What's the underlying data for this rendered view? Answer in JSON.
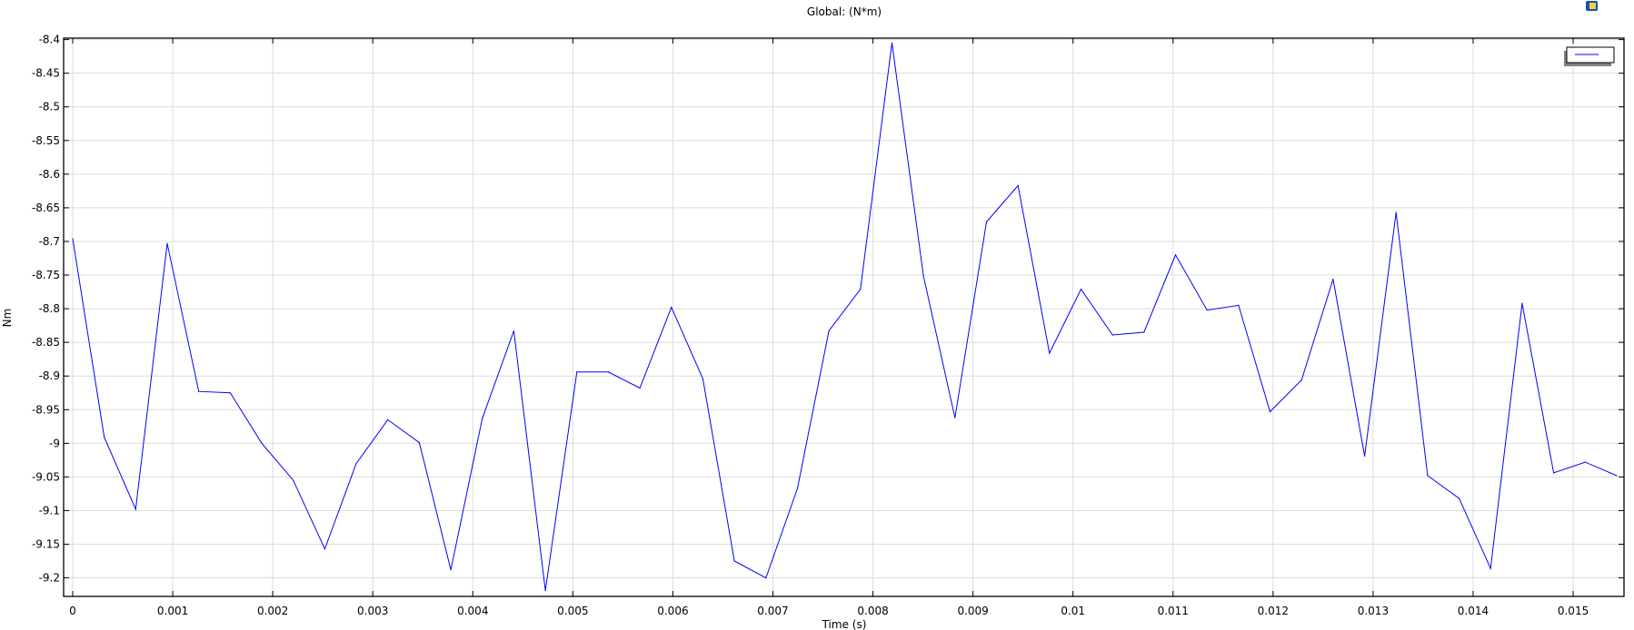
{
  "chart_data": {
    "type": "line",
    "title": "Global:  (N*m)",
    "xlabel": "Time (s)",
    "ylabel": "Nm",
    "xlim": [
      0,
      0.0158
    ],
    "ylim": [
      -9.23,
      -8.39
    ],
    "grid": true,
    "legend_placement": "top-right",
    "x_ticks": [
      "0",
      "0.001",
      "0.002",
      "0.003",
      "0.004",
      "0.005",
      "0.006",
      "0.007",
      "0.008",
      "0.009",
      "0.01",
      "0.011",
      "0.012",
      "0.013",
      "0.014",
      "0.015"
    ],
    "y_ticks": [
      "-8.4",
      "-8.45",
      "-8.5",
      "-8.55",
      "-8.6",
      "-8.65",
      "-8.7",
      "-8.75",
      "-8.8",
      "-8.85",
      "-8.9",
      "-8.95",
      "-9",
      "-9.05",
      "-9.1",
      "-9.15",
      "-9.2"
    ],
    "series": [
      {
        "color": "#0000ff",
        "x": [
          0,
          0.000315,
          0.00063,
          0.000945,
          0.00126,
          0.001575,
          0.00189,
          0.002205,
          0.00252,
          0.002835,
          0.00315,
          0.003465,
          0.00378,
          0.004095,
          0.00441,
          0.004725,
          0.00504,
          0.005355,
          0.00567,
          0.005985,
          0.0063,
          0.006615,
          0.00693,
          0.007245,
          0.00756,
          0.007875,
          0.00819,
          0.008505,
          0.00882,
          0.009135,
          0.00945,
          0.009765,
          0.01008,
          0.010395,
          0.01071,
          0.011025,
          0.01134,
          0.011655,
          0.01197,
          0.012285,
          0.0126,
          0.012915,
          0.01323,
          0.013545,
          0.01386,
          0.014175,
          0.01449,
          0.014805,
          0.01512,
          0.015435
        ],
        "values": [
          -8.696,
          -8.991,
          -9.098,
          -8.703,
          -8.923,
          -8.925,
          -9.0,
          -9.055,
          -9.157,
          -9.03,
          -8.965,
          -8.999,
          -9.188,
          -8.963,
          -8.833,
          -9.219,
          -8.894,
          -8.894,
          -8.918,
          -8.798,
          -8.904,
          -9.175,
          -9.2,
          -9.067,
          -8.833,
          -8.771,
          -8.405,
          -8.751,
          -8.962,
          -8.671,
          -8.617,
          -8.866,
          -8.771,
          -8.839,
          -8.835,
          -8.72,
          -8.802,
          -8.795,
          -8.953,
          -8.906,
          -8.756,
          -9.019,
          -8.657,
          -9.048,
          -9.082,
          -9.186,
          -8.792,
          -9.044,
          -9.028,
          -9.048
        ]
      }
    ]
  },
  "toolbar": {
    "icon": "comsol-plot-icon"
  }
}
